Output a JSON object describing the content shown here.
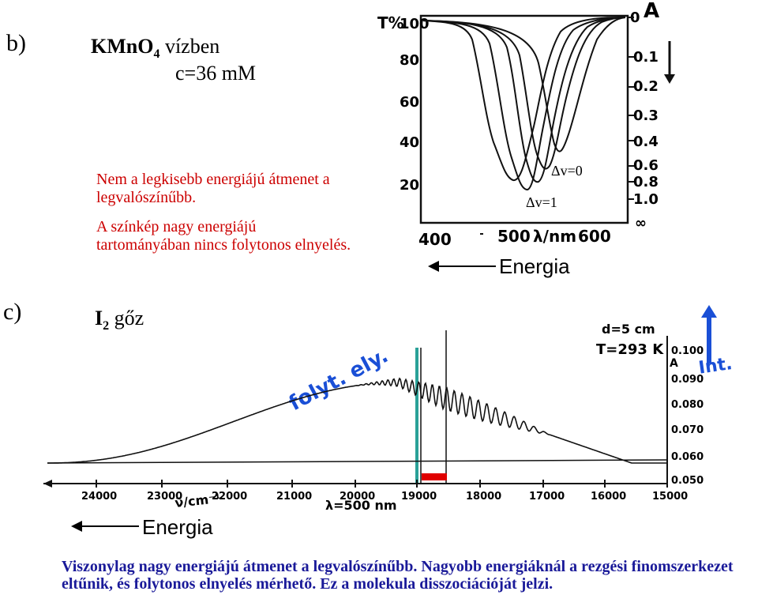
{
  "section_b": {
    "label": "b)",
    "compound": "KMnO",
    "compound_sub": "4",
    "solvent": "vízben",
    "concentration": "c=36 mM"
  },
  "notes": {
    "line1": "Nem a legkisebb energiájú átmenet a",
    "line2": "legvalószínűbb.",
    "line3": "A színkép nagy energiájú",
    "line4": "tartományában nincs folytonos elnyelés."
  },
  "kmno4_plot": {
    "y_left_title": "T%",
    "y_left_ticks": [
      "100",
      "80",
      "60",
      "40",
      "20"
    ],
    "y_right_title": "A",
    "y_right_ticks": [
      "0",
      "0.1",
      "0.2",
      "0.3",
      "0.4",
      "0.6",
      "0.8",
      "1.0",
      "∞"
    ],
    "x_ticks": [
      "400",
      "500",
      "600"
    ],
    "x_label": "λ/nm",
    "annot_v0": "Δv=0",
    "annot_v1": "Δv=1",
    "energy_label": "Energia"
  },
  "section_c": {
    "label": "c)",
    "compound": "I",
    "compound_sub": "2",
    "state": "gőz"
  },
  "i2_plot": {
    "handwritten_label": "folyt. ely.",
    "cell_length": "d=5 cm",
    "temperature": "T=293 K",
    "y_title": "A",
    "y_ticks": [
      "0.100",
      "0.090",
      "0.080",
      "0.070",
      "0.060",
      "0.050"
    ],
    "x_ticks": [
      "24000",
      "23000",
      "22000",
      "21000",
      "20000",
      "19000",
      "18000",
      "17000",
      "16000",
      "15000"
    ],
    "x_label": "ν̃/cm⁻¹",
    "lambda_label": "λ=500 nm",
    "int_label": "Int.",
    "energy_label": "Energia",
    "colors": {
      "marker_line": "#2aa198",
      "red_bar": "#e00000",
      "arrow_blue": "#1a4fd6"
    }
  },
  "caption": {
    "line1": "Viszonylag nagy energiájú átmenet a legvalószínűbb. Nagyobb energiáknál a rezgési finomszerkezet",
    "line2": "eltűnik, és folytonos elnyelés mérhető. Ez a molekula disszociációját jelzi."
  }
}
